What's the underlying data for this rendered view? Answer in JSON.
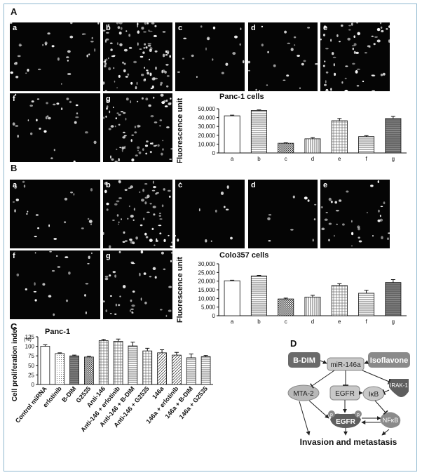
{
  "panels": {
    "A": {
      "letter": "A",
      "images": [
        {
          "label": "a",
          "density": 32
        },
        {
          "label": "b",
          "density": 95
        },
        {
          "label": "c",
          "density": 18
        },
        {
          "label": "d",
          "density": 22
        },
        {
          "label": "e",
          "density": 60
        },
        {
          "label": "f",
          "density": 30
        },
        {
          "label": "g",
          "density": 75
        }
      ]
    },
    "B": {
      "letter": "B",
      "images": [
        {
          "label": "a",
          "density": 22
        },
        {
          "label": "b",
          "density": 70
        },
        {
          "label": "c",
          "density": 12
        },
        {
          "label": "d",
          "density": 10
        },
        {
          "label": "e",
          "density": 35
        },
        {
          "label": "f",
          "density": 22
        },
        {
          "label": "g",
          "density": 40
        }
      ]
    },
    "C": {
      "letter": "C"
    },
    "D": {
      "letter": "D"
    }
  },
  "chart_data": [
    {
      "type": "bar",
      "title": "Panc-1 cells",
      "ylabel": "Fluorescence unit",
      "xlabel": "",
      "categories": [
        "a",
        "b",
        "c",
        "d",
        "e",
        "f",
        "g"
      ],
      "values": [
        42000,
        48000,
        11000,
        16000,
        36500,
        18500,
        39000
      ],
      "errors": [
        800,
        700,
        500,
        1500,
        2500,
        1000,
        2500
      ],
      "ylim": [
        0,
        50000
      ],
      "yticks": [
        "0",
        "10,000",
        "20,000",
        "30,000",
        "40,000",
        "50,000"
      ],
      "ytick_values": [
        0,
        10000,
        20000,
        30000,
        40000,
        50000
      ],
      "fills": [
        "plain",
        "hlines",
        "checker",
        "vlines",
        "hatch",
        "hlines",
        "dense"
      ]
    },
    {
      "type": "bar",
      "title": "Colo357 cells",
      "ylabel": "Fluorescence unit",
      "xlabel": "",
      "categories": [
        "a",
        "b",
        "c",
        "d",
        "e",
        "f",
        "g"
      ],
      "values": [
        20200,
        23000,
        9700,
        10800,
        17500,
        13000,
        19200
      ],
      "errors": [
        300,
        300,
        500,
        1000,
        1000,
        1700,
        1700
      ],
      "ylim": [
        0,
        30000
      ],
      "yticks": [
        "0",
        "5,000",
        "10,000",
        "15,000",
        "20,000",
        "25,000",
        "30,000"
      ],
      "ytick_values": [
        0,
        5000,
        10000,
        15000,
        20000,
        25000,
        30000
      ],
      "fills": [
        "plain",
        "hlines",
        "checker",
        "vlines",
        "hatch",
        "hlines",
        "dense"
      ]
    },
    {
      "type": "bar",
      "title": "Panc-1",
      "ylabel": "Cell proliferation index",
      "yunit": "(%)",
      "xlabel": "",
      "categories": [
        "Control miRNA",
        "erlotinib",
        "B-DIM",
        "G2535",
        "Anti-146",
        "Anti-146 + erlotinib",
        "Anti-146 + B-DIM",
        "Anti-146 + G2535",
        "146a",
        "146a + erlotinib",
        "146a + B-DIM",
        "146a + G2535"
      ],
      "values": [
        100,
        81,
        75,
        72,
        115,
        113,
        101,
        88,
        83,
        77,
        70,
        73
      ],
      "errors": [
        4,
        2,
        2,
        2,
        3,
        6,
        10,
        7,
        8,
        7,
        10,
        3
      ],
      "ylim": [
        0,
        125
      ],
      "yticks": [
        "0",
        "25",
        "50",
        "75",
        "100",
        "125"
      ],
      "ytick_values": [
        0,
        25,
        50,
        75,
        100,
        125
      ],
      "fills": [
        "plain",
        "dots",
        "dense",
        "checker",
        "hatch",
        "hatch",
        "hlines",
        "hatch",
        "dhatch",
        "dhatch",
        "hlines",
        "hlines"
      ]
    }
  ],
  "diagram": {
    "nodes": {
      "bdim": "B-DIM",
      "isoflavone": "Isoflavone",
      "mir146a": "miR-146a",
      "irak1": "IRAK-1",
      "mta2": "MTA-2",
      "egfr1": "EGFR",
      "ikb": "IκB",
      "egfr2": "EGFR",
      "nfkb": "NFκB",
      "p1": "p",
      "p2": "p",
      "outcome": "Invasion and metastasis"
    }
  }
}
